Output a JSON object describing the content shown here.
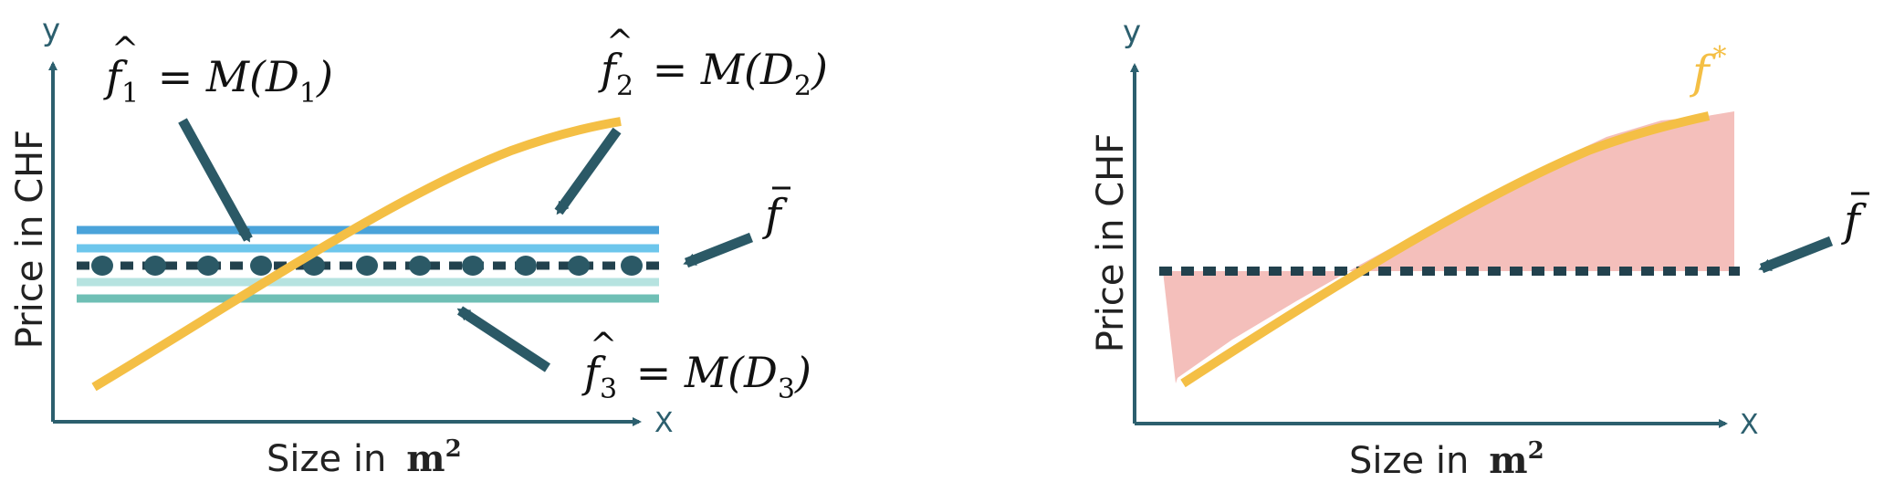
{
  "colors": {
    "axis": "#2c5f6e",
    "arrow": "#2b5966",
    "model_curve": "#f4bf45",
    "mean_line": "#22414d",
    "line_blue_1": "#4aa3da",
    "line_blue_2": "#6dc6ec",
    "line_green_1": "#b6e3e0",
    "line_green_2": "#6fbfb5",
    "error_fill": "#f4bfbb"
  },
  "left": {
    "axis_x_tick": "X",
    "axis_y_tick": "y",
    "xlabel": "Size in",
    "xlabel_unit": "m",
    "xlabel_exp": "2",
    "ylabel": "Price in CHF",
    "label_f1": {
      "fn": "f",
      "sub": "1",
      "rest": " = M(D",
      "dsub": "1",
      "close": ")"
    },
    "label_f2": {
      "fn": "f",
      "sub": "2",
      "rest": " = M(D",
      "dsub": "2",
      "close": ")"
    },
    "label_f3": {
      "fn": "f",
      "sub": "3",
      "rest": " = M(D",
      "dsub": "3",
      "close": ")"
    },
    "label_fbar": "f"
  },
  "right": {
    "axis_x_tick": "X",
    "axis_y_tick": "y",
    "xlabel": "Size in",
    "xlabel_unit": "m",
    "xlabel_exp": "2",
    "ylabel": "Price in CHF",
    "label_fstar": {
      "fn": "f",
      "sup": "*"
    },
    "label_fbar": "f"
  }
}
